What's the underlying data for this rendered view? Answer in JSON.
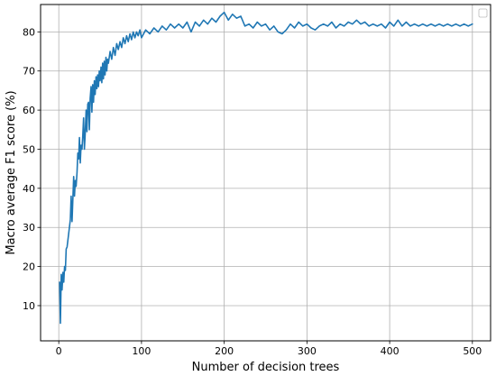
{
  "chart_data": {
    "type": "line",
    "title": "",
    "xlabel": "Number of decision trees",
    "ylabel": "Macro average F1 score (%)",
    "xlim": [
      -22,
      522
    ],
    "ylim": [
      1,
      87
    ],
    "x_ticks": [
      0,
      100,
      200,
      300,
      400,
      500
    ],
    "y_ticks": [
      10,
      20,
      30,
      40,
      50,
      60,
      70,
      80
    ],
    "grid": true,
    "legend": {
      "placement": "top-right",
      "entries": []
    },
    "series": [
      {
        "color": "#1f77b4",
        "x": [
          1,
          2,
          3,
          4,
          5,
          6,
          7,
          8,
          9,
          10,
          12,
          14,
          15,
          16,
          18,
          19,
          20,
          21,
          22,
          23,
          24,
          25,
          26,
          27,
          28,
          29,
          30,
          31,
          32,
          33,
          34,
          35,
          36,
          37,
          38,
          39,
          40,
          41,
          42,
          43,
          44,
          45,
          46,
          47,
          48,
          49,
          50,
          51,
          52,
          53,
          54,
          55,
          56,
          57,
          58,
          59,
          60,
          62,
          64,
          66,
          68,
          70,
          72,
          74,
          76,
          78,
          80,
          82,
          84,
          86,
          88,
          90,
          92,
          94,
          96,
          98,
          100,
          105,
          110,
          115,
          120,
          125,
          130,
          135,
          140,
          145,
          150,
          155,
          160,
          165,
          170,
          175,
          180,
          185,
          190,
          195,
          200,
          205,
          210,
          215,
          220,
          225,
          230,
          235,
          240,
          245,
          250,
          255,
          260,
          265,
          270,
          275,
          280,
          285,
          290,
          295,
          300,
          305,
          310,
          315,
          320,
          325,
          330,
          335,
          340,
          345,
          350,
          355,
          360,
          365,
          370,
          375,
          380,
          385,
          390,
          395,
          400,
          405,
          410,
          415,
          420,
          425,
          430,
          435,
          440,
          445,
          450,
          455,
          460,
          465,
          470,
          475,
          480,
          485,
          490,
          495,
          500
        ],
        "values": [
          16.0,
          5.5,
          18.0,
          14.0,
          18.5,
          16.0,
          20.0,
          19.0,
          24.5,
          25.0,
          28.5,
          32.0,
          38.0,
          31.5,
          43.0,
          38.0,
          42.0,
          40.5,
          44.0,
          49.0,
          47.5,
          53.0,
          46.5,
          51.0,
          50.0,
          53.5,
          58.0,
          50.0,
          54.0,
          60.0,
          54.5,
          61.5,
          62.0,
          55.0,
          63.0,
          66.0,
          59.5,
          66.5,
          62.0,
          67.5,
          64.0,
          68.5,
          65.5,
          69.0,
          66.0,
          70.0,
          67.5,
          71.0,
          67.0,
          72.0,
          68.0,
          72.5,
          69.0,
          73.5,
          70.0,
          73.0,
          72.0,
          75.0,
          73.0,
          76.0,
          74.0,
          77.0,
          75.5,
          77.5,
          76.0,
          78.5,
          77.0,
          79.0,
          77.5,
          79.5,
          78.0,
          80.0,
          78.5,
          80.0,
          79.0,
          80.5,
          78.5,
          80.5,
          79.5,
          81.0,
          80.0,
          81.5,
          80.5,
          82.0,
          81.0,
          82.0,
          81.0,
          82.5,
          80.0,
          82.5,
          81.5,
          83.0,
          82.0,
          83.5,
          82.5,
          84.0,
          85.0,
          83.0,
          84.5,
          83.5,
          84.0,
          81.5,
          82.0,
          81.0,
          82.5,
          81.5,
          82.0,
          80.5,
          81.5,
          80.0,
          79.5,
          80.5,
          82.0,
          81.0,
          82.5,
          81.5,
          82.0,
          81.0,
          80.5,
          81.5,
          82.0,
          81.5,
          82.5,
          81.0,
          82.0,
          81.5,
          82.5,
          82.0,
          83.0,
          82.0,
          82.5,
          81.5,
          82.0,
          81.5,
          82.0,
          81.0,
          82.5,
          81.5,
          83.0,
          81.5,
          82.5,
          81.5,
          82.0,
          81.5,
          82.0,
          81.5,
          82.0,
          81.5,
          82.0,
          81.5,
          82.0,
          81.5,
          82.0,
          81.5,
          82.0,
          81.5,
          82.0
        ]
      }
    ]
  }
}
